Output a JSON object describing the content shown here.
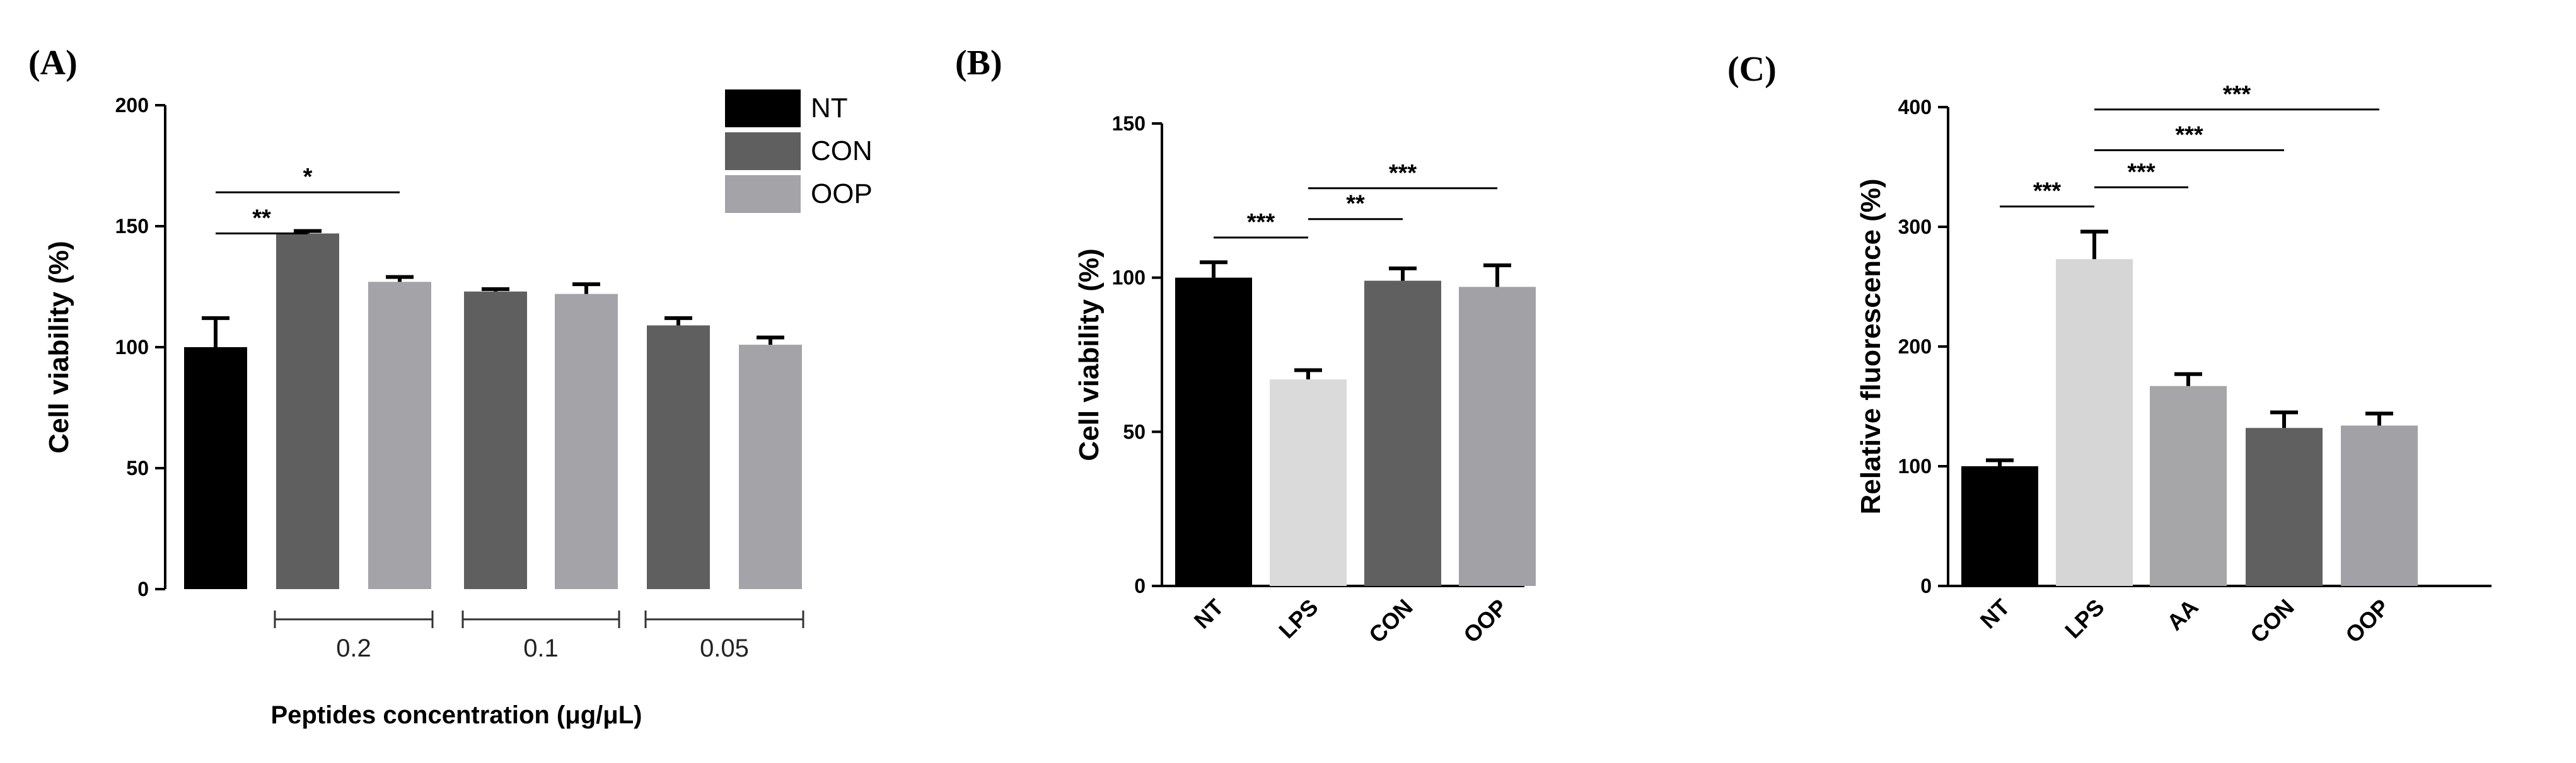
{
  "chart_data": [
    {
      "type": "bar",
      "panel": "(A)",
      "ylabel": "Cell viability (%)",
      "xlabel": "Peptides concentration (μg/μL)",
      "ylim": [
        0,
        200
      ],
      "yticks": [
        "0",
        "50",
        "100",
        "150",
        "200"
      ],
      "legend": {
        "position": "top-right",
        "entries": [
          {
            "label": "NT",
            "color": "#000000"
          },
          {
            "label": "CON",
            "color": "#5f5f5f"
          },
          {
            "label": "OOP",
            "color": "#a4a4a8"
          }
        ]
      },
      "groups": [
        "0.2",
        "0.1",
        "0.05"
      ],
      "bars": [
        {
          "series": "NT",
          "group": "",
          "value": 100,
          "error": 12,
          "color": "#000000"
        },
        {
          "series": "CON",
          "group": "0.2",
          "value": 147,
          "error": 1,
          "color": "#5f5f5f"
        },
        {
          "series": "OOP",
          "group": "0.2",
          "value": 127,
          "error": 2,
          "color": "#a4a4a8"
        },
        {
          "series": "CON",
          "group": "0.1",
          "value": 123,
          "error": 1,
          "color": "#5f5f5f"
        },
        {
          "series": "OOP",
          "group": "0.1",
          "value": 122,
          "error": 4,
          "color": "#a4a4a8"
        },
        {
          "series": "CON",
          "group": "0.05",
          "value": 109,
          "error": 3,
          "color": "#5f5f5f"
        },
        {
          "series": "OOP",
          "group": "0.05",
          "value": 101,
          "error": 3,
          "color": "#a4a4a8"
        }
      ],
      "significance": [
        {
          "from": 0,
          "to": 1,
          "level": 147,
          "label": "**"
        },
        {
          "from": 0,
          "to": 2,
          "level": 164,
          "label": "*"
        }
      ]
    },
    {
      "type": "bar",
      "panel": "(B)",
      "ylabel": "Cell viability (%)",
      "xlabel": "",
      "ylim": [
        0,
        150
      ],
      "yticks": [
        "0",
        "50",
        "100",
        "150"
      ],
      "categories": [
        "NT",
        "LPS",
        "CON",
        "OOP"
      ],
      "bars": [
        {
          "value": 100,
          "error": 5,
          "color": "#000000"
        },
        {
          "value": 67,
          "error": 3,
          "color": "#dadada"
        },
        {
          "value": 99,
          "error": 4,
          "color": "#606060"
        },
        {
          "value": 97,
          "error": 7,
          "color": "#a2a2a6"
        }
      ],
      "significance": [
        {
          "from": 0,
          "to": 1,
          "level": 113,
          "label": "***"
        },
        {
          "from": 1,
          "to": 2,
          "level": 119,
          "label": "**"
        },
        {
          "from": 1,
          "to": 3,
          "level": 129,
          "label": "***"
        }
      ]
    },
    {
      "type": "bar",
      "panel": "(C)",
      "ylabel": "Relative fluorescence (%)",
      "xlabel": "",
      "ylim": [
        0,
        400
      ],
      "yticks": [
        "0",
        "100",
        "200",
        "300",
        "400"
      ],
      "categories": [
        "NT",
        "LPS",
        "AA",
        "CON",
        "OOP"
      ],
      "bars": [
        {
          "value": 100,
          "error": 5,
          "color": "#000000"
        },
        {
          "value": 273,
          "error": 23,
          "color": "#d6d6d6"
        },
        {
          "value": 167,
          "error": 10,
          "color": "#a6a6a8"
        },
        {
          "value": 132,
          "error": 13,
          "color": "#606060"
        },
        {
          "value": 134,
          "error": 10,
          "color": "#a2a2a6"
        }
      ],
      "significance": [
        {
          "from": 0,
          "to": 1,
          "level": 317,
          "label": "***"
        },
        {
          "from": 1,
          "to": 2,
          "level": 333,
          "label": "***"
        },
        {
          "from": 1,
          "to": 3,
          "level": 364,
          "label": "***"
        },
        {
          "from": 1,
          "to": 4,
          "level": 398,
          "label": "***"
        }
      ]
    }
  ]
}
